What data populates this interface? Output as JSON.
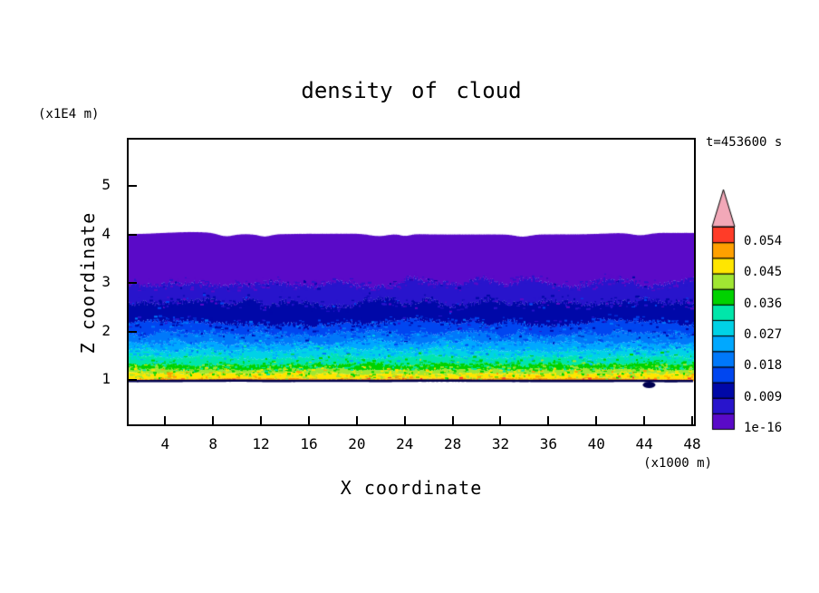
{
  "header": {
    "title": "density of cloud",
    "timestamp": "t=453600 s"
  },
  "axes": {
    "x": {
      "label": "X coordinate",
      "unit": "(x1000 m)",
      "ticks": [
        4,
        8,
        12,
        16,
        20,
        24,
        28,
        32,
        36,
        40,
        44,
        48
      ],
      "lim": [
        0.8,
        48.3
      ]
    },
    "z": {
      "label": "Z coordinate",
      "unit": "(x1E4 m)",
      "ticks": [
        1,
        2,
        3,
        4,
        5
      ],
      "lim": [
        0.05,
        6.0
      ]
    }
  },
  "colorbar": {
    "labels_top_to_bottom": [
      "0.054",
      "0.045",
      "0.036",
      "0.027",
      "0.018",
      "0.009",
      "1e-16"
    ],
    "label_boundary_step": 2,
    "arrow_fill": "#F2A8B8"
  },
  "chart_data": {
    "type": "heatmap",
    "title": "density of cloud",
    "xlabel": "X coordinate",
    "x_unit": "x1000 m",
    "ylabel": "Z coordinate",
    "y_unit": "x1E4 m",
    "time_label": "t=453600 s",
    "time_seconds": 453600,
    "xlim": [
      0.8,
      48.3
    ],
    "zlim": [
      0.05,
      6.0
    ],
    "grid": false,
    "legend_position": "right-colorbar",
    "levels": [
      1e-16,
      0.0045,
      0.009,
      0.0135,
      0.018,
      0.0225,
      0.027,
      0.0315,
      0.036,
      0.0405,
      0.045,
      0.0495,
      0.054
    ],
    "level_colors": [
      "#5A0AC8",
      "#2814CC",
      "#0008A8",
      "#0046F0",
      "#0078FA",
      "#00A8FF",
      "#00D2E6",
      "#00E6AA",
      "#00D200",
      "#A0E632",
      "#FFE600",
      "#FFA000",
      "#FF3C28"
    ],
    "field": {
      "seed": 7,
      "description": "stratiform cloud deck spanning full x range; density increases downward from cloud top near z=4 to a bright maximum just above cloud base near z=1 (units x1E4 m)",
      "boundaries_top_to_bottom": [
        {
          "z": 4.03,
          "amp": 0.03,
          "step": 70,
          "jitter": 0.06,
          "dips": [
            {
              "x": 9.0,
              "w": 0.9,
              "d": 0.06
            },
            {
              "x": 12.3,
              "w": 0.7,
              "d": 0.045
            },
            {
              "x": 21.8,
              "w": 1.1,
              "d": 0.05
            },
            {
              "x": 24.0,
              "w": 0.6,
              "d": 0.04
            },
            {
              "x": 33.8,
              "w": 0.9,
              "d": 0.045
            },
            {
              "x": 43.6,
              "w": 1.0,
              "d": 0.05
            }
          ]
        },
        {
          "z": 3.02,
          "amp": 0.1,
          "step": 26,
          "jitter": 0.5
        },
        {
          "z": 2.6,
          "amp": 0.1,
          "step": 22,
          "jitter": 0.5
        },
        {
          "z": 2.18,
          "amp": 0.08,
          "step": 20,
          "jitter": 0.5
        },
        {
          "z": 1.96,
          "amp": 0.07,
          "step": 18,
          "jitter": 0.5
        },
        {
          "z": 1.78,
          "amp": 0.06,
          "step": 18,
          "jitter": 0.5
        },
        {
          "z": 1.62,
          "amp": 0.05,
          "step": 16,
          "jitter": 0.5
        },
        {
          "z": 1.47,
          "amp": 0.045,
          "step": 16,
          "jitter": 0.5
        },
        {
          "z": 1.33,
          "amp": 0.04,
          "step": 14,
          "jitter": 0.5
        },
        {
          "z": 1.22,
          "amp": 0.03,
          "step": 14,
          "jitter": 0.5
        },
        {
          "z": 1.14,
          "amp": 0.022,
          "step": 12,
          "jitter": 0.4
        },
        {
          "z": 1.03,
          "amp": 0.015,
          "step": 12,
          "jitter": 0.4
        },
        {
          "z": 0.985,
          "amp": 0.006,
          "step": 40,
          "jitter": 0.15
        }
      ],
      "bottom_line_color": "#000050",
      "bottom_line_width": 2.6,
      "speckle": {
        "count": 5200,
        "bottom_specks": 90
      },
      "lower_blob": {
        "x": 44.4,
        "z": 0.9,
        "rx": 7,
        "rz": 3.5,
        "color": "#000050"
      }
    }
  }
}
